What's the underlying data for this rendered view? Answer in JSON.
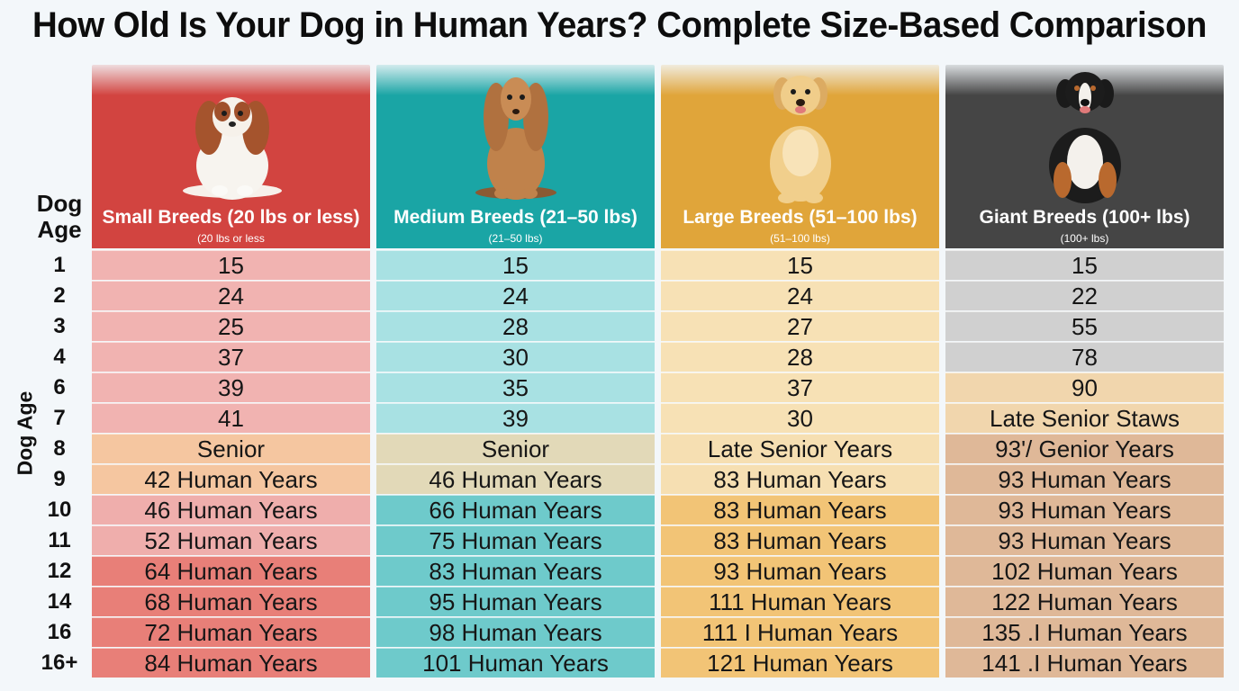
{
  "title": "How Old Is Your Dog in Human Years? Complete Size-Based Comparison",
  "dog_age_header": "Dog Age",
  "side_label": "Dog Age",
  "ages": [
    "1",
    "2",
    "3",
    "4",
    "6",
    "7",
    "8",
    "9",
    "10",
    "11",
    "12",
    "14",
    "16",
    "16+"
  ],
  "columns": [
    {
      "title": "Small Breeds (20 lbs or less)",
      "subtitle": "(20 lbs or less",
      "image": "cavalier-spaniel-photo",
      "header_color": "#d24440",
      "values": [
        "15",
        "24",
        "25",
        "37",
        "39",
        "41",
        "Senior",
        "42 Human Years",
        "46 Human Years",
        "52 Human Years",
        "64 Human Years",
        "68 Human Years",
        "72 Human Years",
        "84 Human Years"
      ],
      "cell_colors": [
        "#f1b3b1",
        "#f1b3b1",
        "#f1b3b1",
        "#f1b3b1",
        "#f1b3b1",
        "#f1b3b1",
        "#f5c6a0",
        "#f5c6a0",
        "#efaeac",
        "#efaeac",
        "#e87f78",
        "#e87f78",
        "#e87f78",
        "#e87f78"
      ]
    },
    {
      "title": "Medium Breeds (21–50 lbs)",
      "subtitle": "(21–50 lbs)",
      "image": "cocker-spaniel-photo",
      "header_color": "#1aa5a5",
      "values": [
        "15",
        "24",
        "28",
        "30",
        "35",
        "39",
        "Senior",
        "46 Human Years",
        "66 Human Years",
        "75 Human Years",
        "83 Human Years",
        "95 Human Years",
        "98 Human Years",
        "101  Human Years"
      ],
      "cell_colors": [
        "#a8e1e3",
        "#a8e1e3",
        "#a8e1e3",
        "#a8e1e3",
        "#a8e1e3",
        "#a8e1e3",
        "#e2d9b8",
        "#e2d9b8",
        "#6ecacb",
        "#6ecacb",
        "#6ecacb",
        "#6ecacb",
        "#6ecacb",
        "#6ecacb"
      ]
    },
    {
      "title": "Large Breeds (51–100 lbs)",
      "subtitle": "(51–100 lbs)",
      "image": "golden-retriever-photo",
      "header_color": "#e0a53a",
      "values": [
        "15",
        "24",
        "27",
        "28",
        "37",
        "30",
        "Late Senior Years",
        "83 Human Years",
        "83 Human Years",
        "83 Human Years",
        "93 Human Years",
        "111  Human Years",
        "111 I  Human Years",
        "121   Human Years"
      ],
      "cell_colors": [
        "#f7e1b5",
        "#f7e1b5",
        "#f7e1b5",
        "#f7e1b5",
        "#f7e1b5",
        "#f7e1b5",
        "#f6dfb2",
        "#f6dfb2",
        "#f2c476",
        "#f2c476",
        "#f2c476",
        "#f2c476",
        "#f2c476",
        "#f2c476"
      ]
    },
    {
      "title": "Giant Breeds (100+ lbs)",
      "subtitle": "(100+ lbs)",
      "image": "bernese-mountain-dog-photo",
      "header_color": "#454545",
      "values": [
        "15",
        "22",
        "55",
        "78",
        "90",
        "Late Senior Staws",
        "93'/ Genior Years",
        "93 Human Years",
        "93 Human Years",
        "93 Human Years",
        "102  Human Years",
        "122  Human Years",
        "135 .I Human Years",
        "141 .I Human Years"
      ],
      "cell_colors": [
        "#d0d0d0",
        "#d0d0d0",
        "#d0d0d0",
        "#d0d0d0",
        "#f1d6ad",
        "#f1d6ad",
        "#dfb898",
        "#dfb898",
        "#dfb898",
        "#dfb898",
        "#dfb898",
        "#dfb898",
        "#dfb898",
        "#dfb898"
      ]
    }
  ]
}
